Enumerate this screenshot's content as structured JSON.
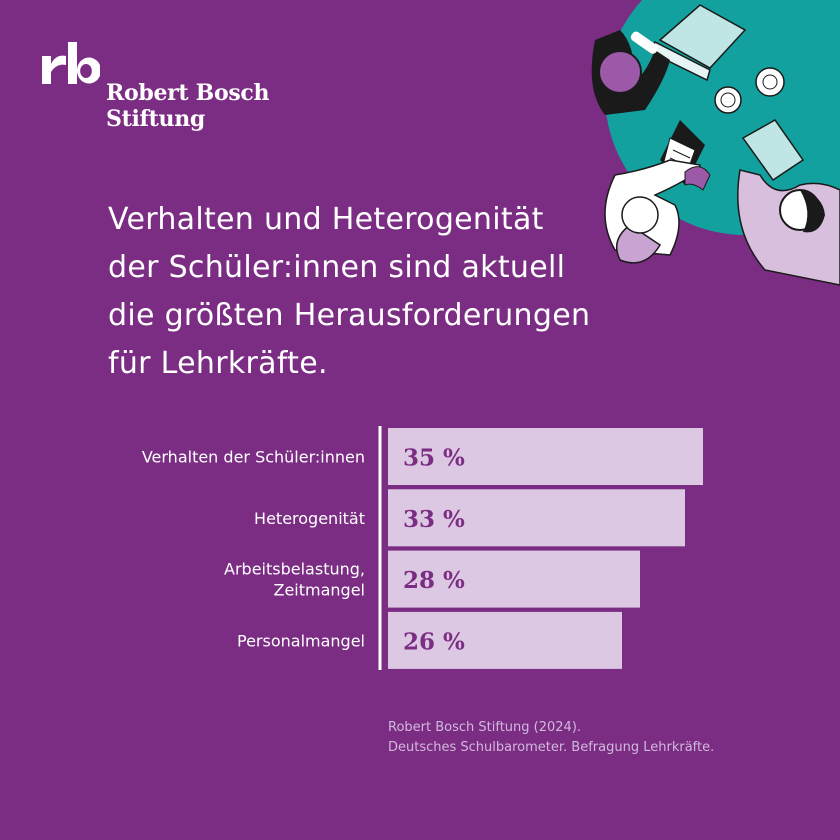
{
  "brand": {
    "logo_name_line1": "Robert Bosch",
    "logo_name_line2": "Stiftung"
  },
  "headline": {
    "line1": "Verhalten und Heterogenität",
    "line2": "der Schüler:innen sind aktuell",
    "line3": "die größten Herausforderungen",
    "line4": "für Lehrkräfte."
  },
  "chart_data": {
    "type": "bar",
    "orientation": "horizontal",
    "categories": [
      "Verhalten der Schüler:innen",
      "Heterogenität",
      "Arbeitsbelastung, Zeitmangel",
      "Personalmangel"
    ],
    "category_lines": [
      [
        "Verhalten der Schüler:innen"
      ],
      [
        "Heterogenität"
      ],
      [
        "Arbeitsbelastung,",
        "Zeitmangel"
      ],
      [
        "Personalmangel"
      ]
    ],
    "values": [
      35,
      33,
      28,
      26
    ],
    "value_labels": [
      "35 %",
      "33 %",
      "28 %",
      "26 %"
    ],
    "unit": "%",
    "xlim": [
      0,
      38
    ]
  },
  "source": {
    "line1": "Robert Bosch Stiftung (2024).",
    "line2": "Deutsches Schulbarometer. Befragung Lehrkräfte."
  },
  "colors": {
    "background": "#7b2d84",
    "bar": "#dcc8e2",
    "bar_label": "#7b2d84",
    "teal": "#12a19e"
  }
}
